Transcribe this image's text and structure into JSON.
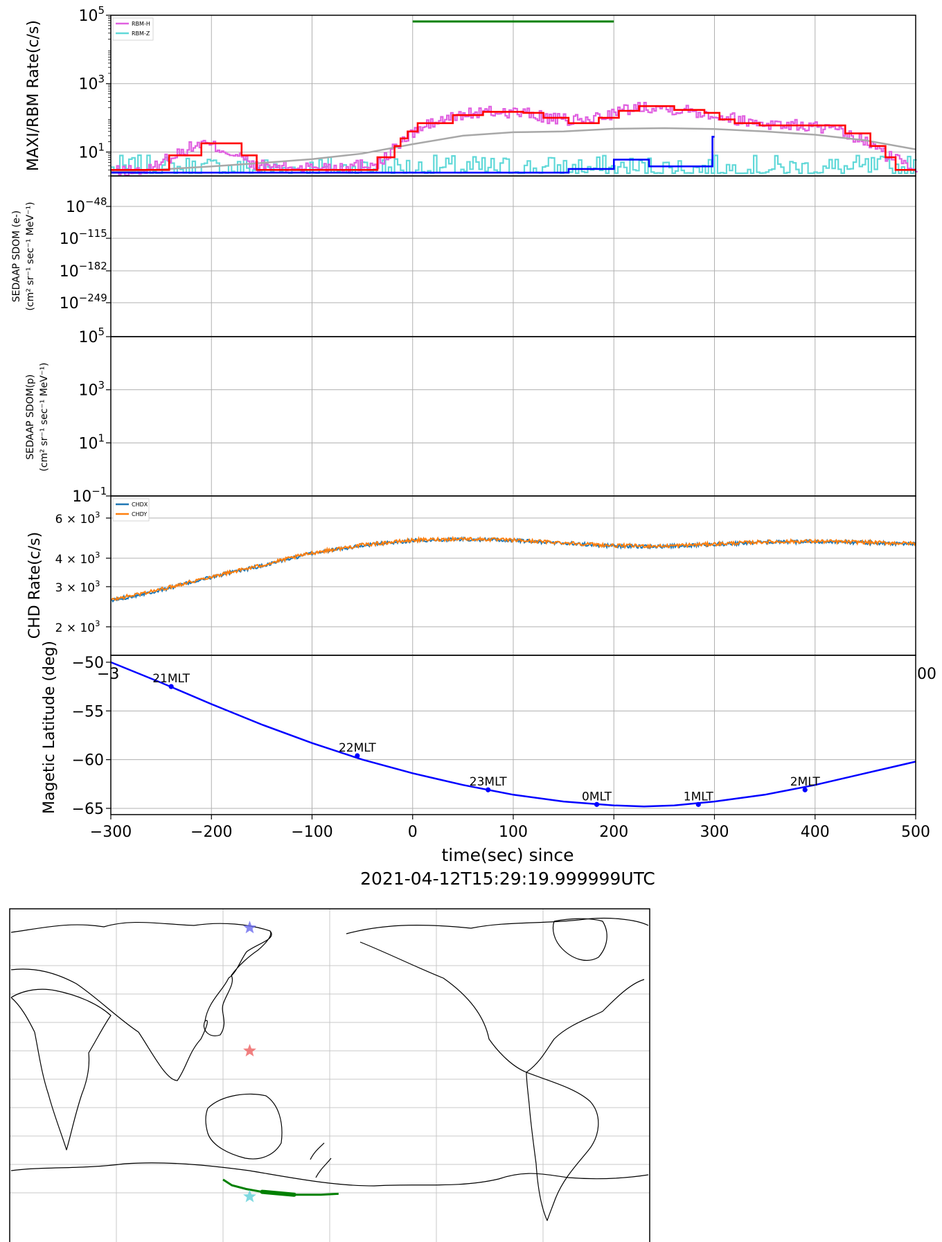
{
  "colors": {
    "rbm_h": "#e060e0",
    "rbm_z": "#60d8d8",
    "maxi_hard": "#ff0000",
    "maxi_soft": "#0000ff",
    "background": "#a8a8a8",
    "green_bar": "#008000",
    "chdx": "#1f77b4",
    "chdy": "#ff7f0e",
    "mlat": "#0000ff",
    "grid": "#b0b0b0"
  },
  "chart_data": [
    {
      "type": "line",
      "panel": "rbm",
      "ylabel": "MAXI/RBM Rate(c/s)",
      "y_scale": "log",
      "ylim": [
        2,
        100000
      ],
      "xlim": [
        -300,
        500
      ],
      "yticks": [
        {
          "value": 10,
          "base": "10",
          "exp": "1"
        },
        {
          "value": 1000,
          "base": "10",
          "exp": "3"
        },
        {
          "value": 100000,
          "base": "10",
          "exp": "5"
        }
      ],
      "legend": [
        "RBM-H",
        "RBM-Z"
      ],
      "legend_position": "top-left",
      "green_interval": [
        0,
        200
      ],
      "hard_steps": [
        [
          -300,
          3
        ],
        [
          -250,
          3
        ],
        [
          -242,
          8
        ],
        [
          -210,
          18
        ],
        [
          -170,
          8
        ],
        [
          -155,
          3
        ],
        [
          -35,
          3
        ],
        [
          -35,
          7
        ],
        [
          -18,
          15
        ],
        [
          -12,
          25
        ],
        [
          -5,
          40
        ],
        [
          5,
          70
        ],
        [
          40,
          120
        ],
        [
          70,
          150
        ],
        [
          110,
          140
        ],
        [
          130,
          100
        ],
        [
          155,
          70
        ],
        [
          185,
          100
        ],
        [
          205,
          160
        ],
        [
          225,
          220
        ],
        [
          260,
          170
        ],
        [
          290,
          140
        ],
        [
          305,
          90
        ],
        [
          320,
          70
        ],
        [
          345,
          60
        ],
        [
          380,
          60
        ],
        [
          430,
          35
        ],
        [
          455,
          15
        ],
        [
          470,
          7
        ],
        [
          480,
          3
        ],
        [
          500,
          3
        ]
      ],
      "soft_steps": [
        [
          -300,
          2.5
        ],
        [
          -245,
          2.5
        ],
        [
          -100,
          2.5
        ],
        [
          -35,
          2.5
        ],
        [
          155,
          2.5
        ],
        [
          155,
          3.2
        ],
        [
          200,
          3.2
        ],
        [
          200,
          6
        ],
        [
          235,
          6
        ],
        [
          235,
          3.8
        ],
        [
          298,
          3.8
        ],
        [
          298,
          28
        ],
        [
          300,
          28
        ]
      ],
      "background_curve": [
        [
          -300,
          2.6
        ],
        [
          -250,
          3.1
        ],
        [
          -200,
          3.8
        ],
        [
          -150,
          4.8
        ],
        [
          -100,
          6.2
        ],
        [
          -50,
          9
        ],
        [
          0,
          17
        ],
        [
          50,
          30
        ],
        [
          100,
          38
        ],
        [
          150,
          40
        ],
        [
          200,
          48
        ],
        [
          250,
          50
        ],
        [
          300,
          47
        ],
        [
          350,
          40
        ],
        [
          400,
          32
        ],
        [
          450,
          22
        ],
        [
          500,
          12
        ]
      ],
      "rbmh_envelope": [
        [
          -300,
          2.6
        ],
        [
          -260,
          3
        ],
        [
          -230,
          10
        ],
        [
          -210,
          18
        ],
        [
          -180,
          9
        ],
        [
          -160,
          4
        ],
        [
          -120,
          3.5
        ],
        [
          -60,
          4
        ],
        [
          -30,
          5
        ],
        [
          -10,
          20
        ],
        [
          20,
          70
        ],
        [
          60,
          140
        ],
        [
          100,
          150
        ],
        [
          140,
          90
        ],
        [
          170,
          80
        ],
        [
          200,
          140
        ],
        [
          230,
          220
        ],
        [
          270,
          170
        ],
        [
          300,
          120
        ],
        [
          330,
          80
        ],
        [
          360,
          65
        ],
        [
          400,
          55
        ],
        [
          440,
          25
        ],
        [
          470,
          8
        ],
        [
          500,
          3
        ]
      ],
      "rbmz_level": [
        2.4,
        5.0
      ]
    },
    {
      "type": "line",
      "panel": "sdom_e",
      "ylabel_line1": "SEDAAP SDOM (e-)",
      "ylabel_line2": "(cm² sr⁻¹ sec⁻¹ MeV⁻¹)",
      "y_scale": "log",
      "xlim": [
        -300,
        500
      ],
      "yticks": [
        {
          "base": "10",
          "exp": "−48"
        },
        {
          "base": "10",
          "exp": "−115"
        },
        {
          "base": "10",
          "exp": "−182"
        },
        {
          "base": "10",
          "exp": "−249"
        }
      ],
      "series": []
    },
    {
      "type": "line",
      "panel": "sdom_p",
      "ylabel_line1": "SEDAAP SDOM(p)",
      "ylabel_line2": "(cm² sr⁻¹ sec⁻¹ MeV⁻¹)",
      "y_scale": "log",
      "ylim": [
        0.1,
        100000
      ],
      "xlim": [
        -300,
        500
      ],
      "yticks": [
        {
          "base": "10",
          "exp": "5"
        },
        {
          "base": "10",
          "exp": "3"
        },
        {
          "base": "10",
          "exp": "1"
        },
        {
          "base": "10",
          "exp": "−1"
        }
      ],
      "series": []
    },
    {
      "type": "line",
      "panel": "chd",
      "ylabel": "CHD Rate(c/s)",
      "y_scale": "log",
      "ylim": [
        1500,
        7500
      ],
      "xlim": [
        -300,
        500
      ],
      "yticks": [
        {
          "value": 2000,
          "label": "2 × 10",
          "exp": "3"
        },
        {
          "value": 3000,
          "label": "3 × 10",
          "exp": "3"
        },
        {
          "value": 4000,
          "label": "4 × 10",
          "exp": "3"
        },
        {
          "value": 6000,
          "label": "6 × 10",
          "exp": "3"
        }
      ],
      "legend": [
        "CHDX",
        "CHDY"
      ],
      "legend_position": "top-left",
      "x_tick_fragments": [
        "−3",
        "00"
      ],
      "series": [
        {
          "name": "CHDX",
          "values": [
            [
              -300,
              2600
            ],
            [
              -250,
              2900
            ],
            [
              -200,
              3300
            ],
            [
              -150,
              3700
            ],
            [
              -100,
              4200
            ],
            [
              -50,
              4550
            ],
            [
              0,
              4780
            ],
            [
              50,
              4850
            ],
            [
              100,
              4780
            ],
            [
              150,
              4660
            ],
            [
              200,
              4520
            ],
            [
              250,
              4500
            ],
            [
              300,
              4600
            ],
            [
              350,
              4700
            ],
            [
              400,
              4730
            ],
            [
              450,
              4680
            ],
            [
              500,
              4620
            ]
          ]
        },
        {
          "name": "CHDY",
          "values": [
            [
              -300,
              2620
            ],
            [
              -250,
              2920
            ],
            [
              -200,
              3320
            ],
            [
              -150,
              3720
            ],
            [
              -100,
              4220
            ],
            [
              -50,
              4570
            ],
            [
              0,
              4800
            ],
            [
              50,
              4870
            ],
            [
              100,
              4800
            ],
            [
              150,
              4680
            ],
            [
              200,
              4540
            ],
            [
              250,
              4520
            ],
            [
              300,
              4620
            ],
            [
              350,
              4720
            ],
            [
              400,
              4750
            ],
            [
              450,
              4700
            ],
            [
              500,
              4640
            ]
          ]
        }
      ]
    },
    {
      "type": "line",
      "panel": "mlat",
      "ylabel": "Magetic Latitude  (deg)",
      "xlabel_line1": "time(sec) since",
      "xlabel_line2": "2021-04-12T15:29:19.999999UTC",
      "xlim": [
        -300,
        500
      ],
      "ylim": [
        -65.5,
        -50
      ],
      "xticks": [
        "−300",
        "−200",
        "−100",
        "0",
        "100",
        "200",
        "300",
        "400",
        "500"
      ],
      "yticks": [
        "−50",
        "−55",
        "−60",
        "−65"
      ],
      "series": [
        {
          "name": "",
          "values": [
            [
              -300,
              -50.0
            ],
            [
              -250,
              -52.1
            ],
            [
              -200,
              -54.3
            ],
            [
              -150,
              -56.4
            ],
            [
              -100,
              -58.3
            ],
            [
              -50,
              -60.0
            ],
            [
              0,
              -61.4
            ],
            [
              50,
              -62.6
            ],
            [
              100,
              -63.6
            ],
            [
              150,
              -64.3
            ],
            [
              200,
              -64.7
            ],
            [
              230,
              -64.8
            ],
            [
              260,
              -64.7
            ],
            [
              300,
              -64.3
            ],
            [
              350,
              -63.6
            ],
            [
              400,
              -62.6
            ],
            [
              450,
              -61.4
            ],
            [
              500,
              -60.2
            ]
          ]
        }
      ],
      "mlt_markers": [
        {
          "t": -240,
          "lat": -52.5,
          "label": "21MLT"
        },
        {
          "t": -55,
          "lat": -59.6,
          "label": "22MLT"
        },
        {
          "t": 75,
          "lat": -63.1,
          "label": "23MLT"
        },
        {
          "t": 183,
          "lat": -64.6,
          "label": "0MLT"
        },
        {
          "t": 284,
          "lat": -64.6,
          "label": "1MLT"
        },
        {
          "t": 390,
          "lat": -63.1,
          "label": "2MLT"
        }
      ]
    }
  ],
  "map": {
    "stars": [
      {
        "name": "blue-star",
        "color": "#6a6aee",
        "lon": 150,
        "lat": 80
      },
      {
        "name": "red-star",
        "color": "#ee6060",
        "lon": 150,
        "lat": 15
      },
      {
        "name": "cyan-star",
        "color": "#60d0d8",
        "lon": 150,
        "lat": -62
      }
    ],
    "track": [
      [
        135,
        -53
      ],
      [
        140,
        -56
      ],
      [
        148,
        -58
      ],
      [
        160,
        -60
      ],
      [
        175,
        -61
      ],
      [
        190,
        -61
      ],
      [
        200,
        -60.5
      ]
    ],
    "track_color": "#008000"
  }
}
